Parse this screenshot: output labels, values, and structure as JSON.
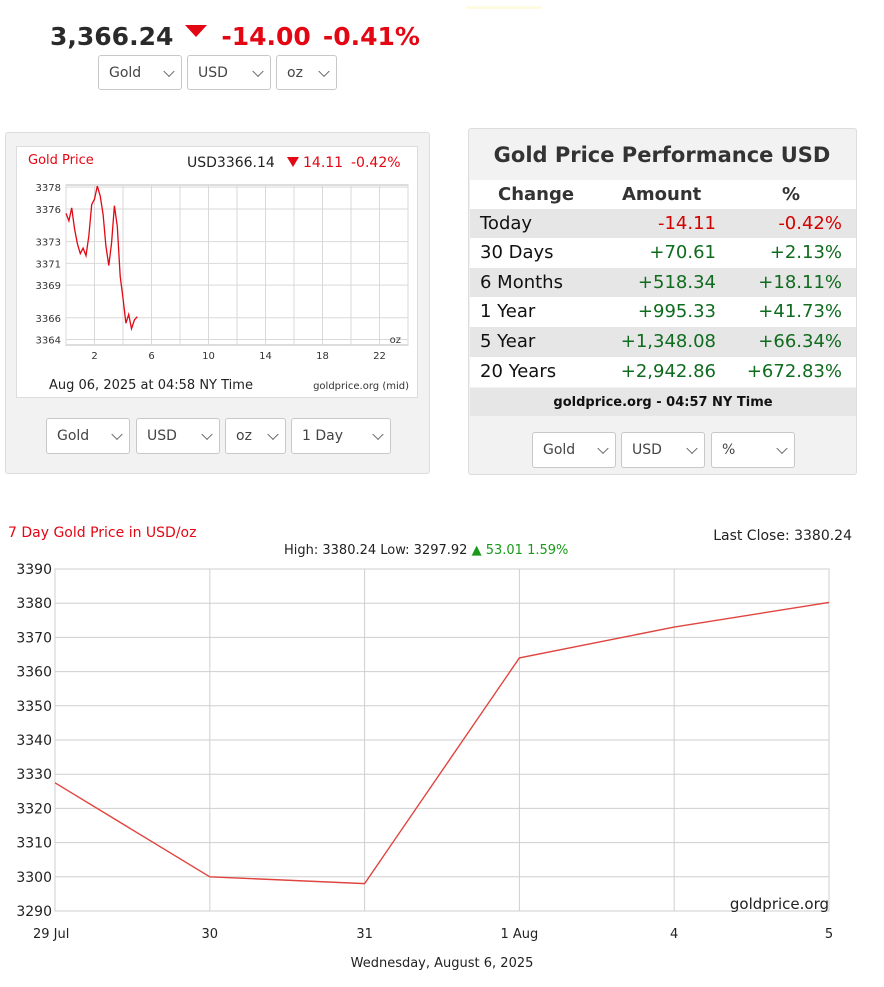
{
  "headline": {
    "price": "3,366.24",
    "direction": "down",
    "change": "-14.00",
    "change_pct": "-0.41%",
    "down_color": "#e30613"
  },
  "top_selectors": {
    "metal": "Gold",
    "currency": "USD",
    "unit": "oz"
  },
  "mini_chart": {
    "title": "Gold Price",
    "quote_price": "USD3366.14",
    "quote_change": "14.11",
    "quote_pct": "-0.42%",
    "unit_label": "oz",
    "timestamp": "Aug 06, 2025 at 04:58 NY Time",
    "source": "goldprice.org (mid)"
  },
  "mini_selectors": {
    "metal": "Gold",
    "currency": "USD",
    "unit": "oz",
    "range": "1 Day"
  },
  "performance": {
    "title": "Gold Price Performance USD",
    "headers": {
      "change": "Change",
      "amount": "Amount",
      "pct": "%"
    },
    "rows": [
      {
        "label": "Today",
        "amount": "-14.11",
        "pct": "-0.42%",
        "sign": "neg"
      },
      {
        "label": "30 Days",
        "amount": "+70.61",
        "pct": "+2.13%",
        "sign": "pos"
      },
      {
        "label": "6 Months",
        "amount": "+518.34",
        "pct": "+18.11%",
        "sign": "pos"
      },
      {
        "label": "1 Year",
        "amount": "+995.33",
        "pct": "+41.73%",
        "sign": "pos"
      },
      {
        "label": "5 Year",
        "amount": "+1,348.08",
        "pct": "+66.34%",
        "sign": "pos"
      },
      {
        "label": "20 Years",
        "amount": "+2,942.86",
        "pct": "+672.83%",
        "sign": "pos"
      }
    ],
    "footer": "goldprice.org - 04:57 NY Time",
    "negative_color": "#d40000",
    "positive_color": "#0f6b1e"
  },
  "perf_selectors": {
    "metal": "Gold",
    "currency": "USD",
    "mode": "%"
  },
  "week_chart": {
    "title": "7 Day Gold Price in USD/oz",
    "last_close_text": "Last Close: 3380.24",
    "hilo_text": "High: 3380.24 Low: 3297.92",
    "up_change": "53.01",
    "up_pct": "1.59%",
    "watermark": "goldprice.org",
    "date_label": "Wednesday, August 6, 2025"
  },
  "chart_data": [
    {
      "type": "line",
      "title": "Gold Price",
      "series": [
        {
          "name": "Gold Price (USD/oz, 1 Day)",
          "x": [
            0,
            0.2,
            0.4,
            0.6,
            0.8,
            1.0,
            1.2,
            1.4,
            1.6,
            1.8,
            2.0,
            2.2,
            2.4,
            2.6,
            2.8,
            3.0,
            3.2,
            3.4,
            3.6,
            3.8,
            4.0,
            4.2,
            4.4,
            4.6,
            4.8,
            5.0
          ],
          "values": [
            3375.6,
            3374.9,
            3376.1,
            3374.2,
            3372.8,
            3371.9,
            3372.4,
            3371.7,
            3373.5,
            3376.4,
            3376.9,
            3378.1,
            3377.2,
            3375.5,
            3372.6,
            3370.8,
            3372.9,
            3376.3,
            3374.4,
            3369.8,
            3367.8,
            3365.5,
            3366.3,
            3365.0,
            3365.8,
            3366.1
          ]
        }
      ],
      "x_ticks": [
        2,
        6,
        10,
        14,
        18,
        22
      ],
      "y_ticks": [
        3364,
        3366,
        3369,
        3371,
        3373,
        3376,
        3378
      ],
      "xlim": [
        0,
        24
      ],
      "ylim": [
        3363.5,
        3378.2
      ],
      "xlabel": "",
      "ylabel": ""
    },
    {
      "type": "line",
      "title": "7 Day Gold Price in USD/oz",
      "categories": [
        "29 Jul",
        "30",
        "31",
        "1 Aug",
        "4",
        "5"
      ],
      "series": [
        {
          "name": "Gold USD/oz",
          "values": [
            3327.5,
            3300.0,
            3298.0,
            3364.0,
            3373.0,
            3380.24
          ]
        }
      ],
      "y_ticks": [
        3290,
        3300,
        3310,
        3320,
        3330,
        3340,
        3350,
        3360,
        3370,
        3380,
        3390
      ],
      "ylim": [
        3290,
        3390
      ],
      "xlabel": "Wednesday, August 6, 2025",
      "ylabel": ""
    }
  ]
}
